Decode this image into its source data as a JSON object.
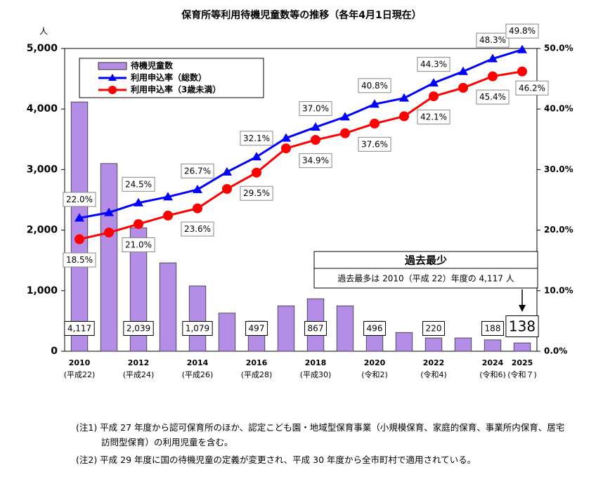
{
  "chart_data": {
    "type": "combo",
    "title": "保育所等利用待機児童数等の推移（各年4月1日現在）",
    "y_unit": "人",
    "categories": [
      "2010",
      null,
      "2012",
      null,
      "2014",
      null,
      "2016",
      null,
      "2018",
      null,
      "2020",
      null,
      "2022",
      null,
      "2024",
      "2025"
    ],
    "category_sublabels": [
      "(平成22)",
      null,
      "(平成24)",
      null,
      "(平成26)",
      null,
      "(平成28)",
      null,
      "(平成30)",
      null,
      "(令和2)",
      null,
      "(令和4)",
      null,
      "(令和6)",
      "(令和７)"
    ],
    "series": [
      {
        "name": "待機児童数",
        "type": "bar",
        "color": "#b48de6",
        "values": [
          4117,
          3100,
          2039,
          1460,
          1079,
          630,
          497,
          750,
          867,
          750,
          496,
          310,
          220,
          220,
          188,
          138
        ],
        "value_labels": [
          "4,117",
          null,
          "2,039",
          null,
          "1,079",
          null,
          "497",
          null,
          "867",
          null,
          "496",
          null,
          "220",
          null,
          "188",
          "138"
        ]
      },
      {
        "name": "利用申込率（総数）",
        "type": "line",
        "marker": "triangle",
        "axis": "y2",
        "color": "#0000ff",
        "values": [
          22.0,
          22.9,
          24.5,
          25.5,
          26.7,
          29.6,
          32.1,
          35.2,
          37.0,
          38.7,
          40.8,
          41.8,
          44.3,
          46.2,
          48.3,
          49.8
        ],
        "value_labels": [
          "22.0%",
          null,
          "24.5%",
          null,
          "26.7%",
          null,
          "32.1%",
          null,
          "37.0%",
          null,
          "40.8%",
          null,
          "44.3%",
          null,
          "48.3%",
          "49.8%"
        ]
      },
      {
        "name": "利用申込率（3歳未満）",
        "type": "line",
        "marker": "circle",
        "axis": "y2",
        "color": "#ff0000",
        "values": [
          18.5,
          19.6,
          21.0,
          22.4,
          23.6,
          26.8,
          29.5,
          33.5,
          34.9,
          36.0,
          37.6,
          38.8,
          42.1,
          43.5,
          45.4,
          46.2
        ],
        "value_labels": [
          "18.5%",
          null,
          "21.0%",
          null,
          "23.6%",
          null,
          "29.5%",
          null,
          "34.9%",
          null,
          "37.6%",
          null,
          "42.1%",
          null,
          "45.4%",
          "46.2%"
        ]
      }
    ],
    "ylim": [
      0,
      5000
    ],
    "yticks": [
      0,
      {
        "value": 1000,
        "label": "1,000"
      },
      {
        "value": 2000,
        "label": "2,000"
      },
      {
        "value": 3000,
        "label": "3,000"
      },
      {
        "value": 4000,
        "label": "4,000"
      },
      {
        "value": 5000,
        "label": "5,000"
      }
    ],
    "y2lim": [
      0,
      50
    ],
    "y2ticks": [
      {
        "value": 0,
        "label": "0.0%"
      },
      {
        "value": 10,
        "label": "10.0%"
      },
      {
        "value": 20,
        "label": "20.0%"
      },
      {
        "value": 30,
        "label": "30.0%"
      },
      {
        "value": 40,
        "label": "40.0%"
      },
      {
        "value": 50,
        "label": "50.0%"
      }
    ],
    "annotation": {
      "title": "過去最少",
      "text": "過去最多は 2010（平成 22）年度の 4,117 人"
    }
  },
  "notes": [
    "(注1) 平成 27 年度から認可保育所のほか、認定こども園・地域型保育事業（小規模保育、家庭的保育、事業所内保育、居宅訪問型保育）の利用児童を含む。",
    "(注2) 平成 29 年度に国の待機児童の定義が変更され、平成 30 年度から全市町村で適用されている。"
  ]
}
